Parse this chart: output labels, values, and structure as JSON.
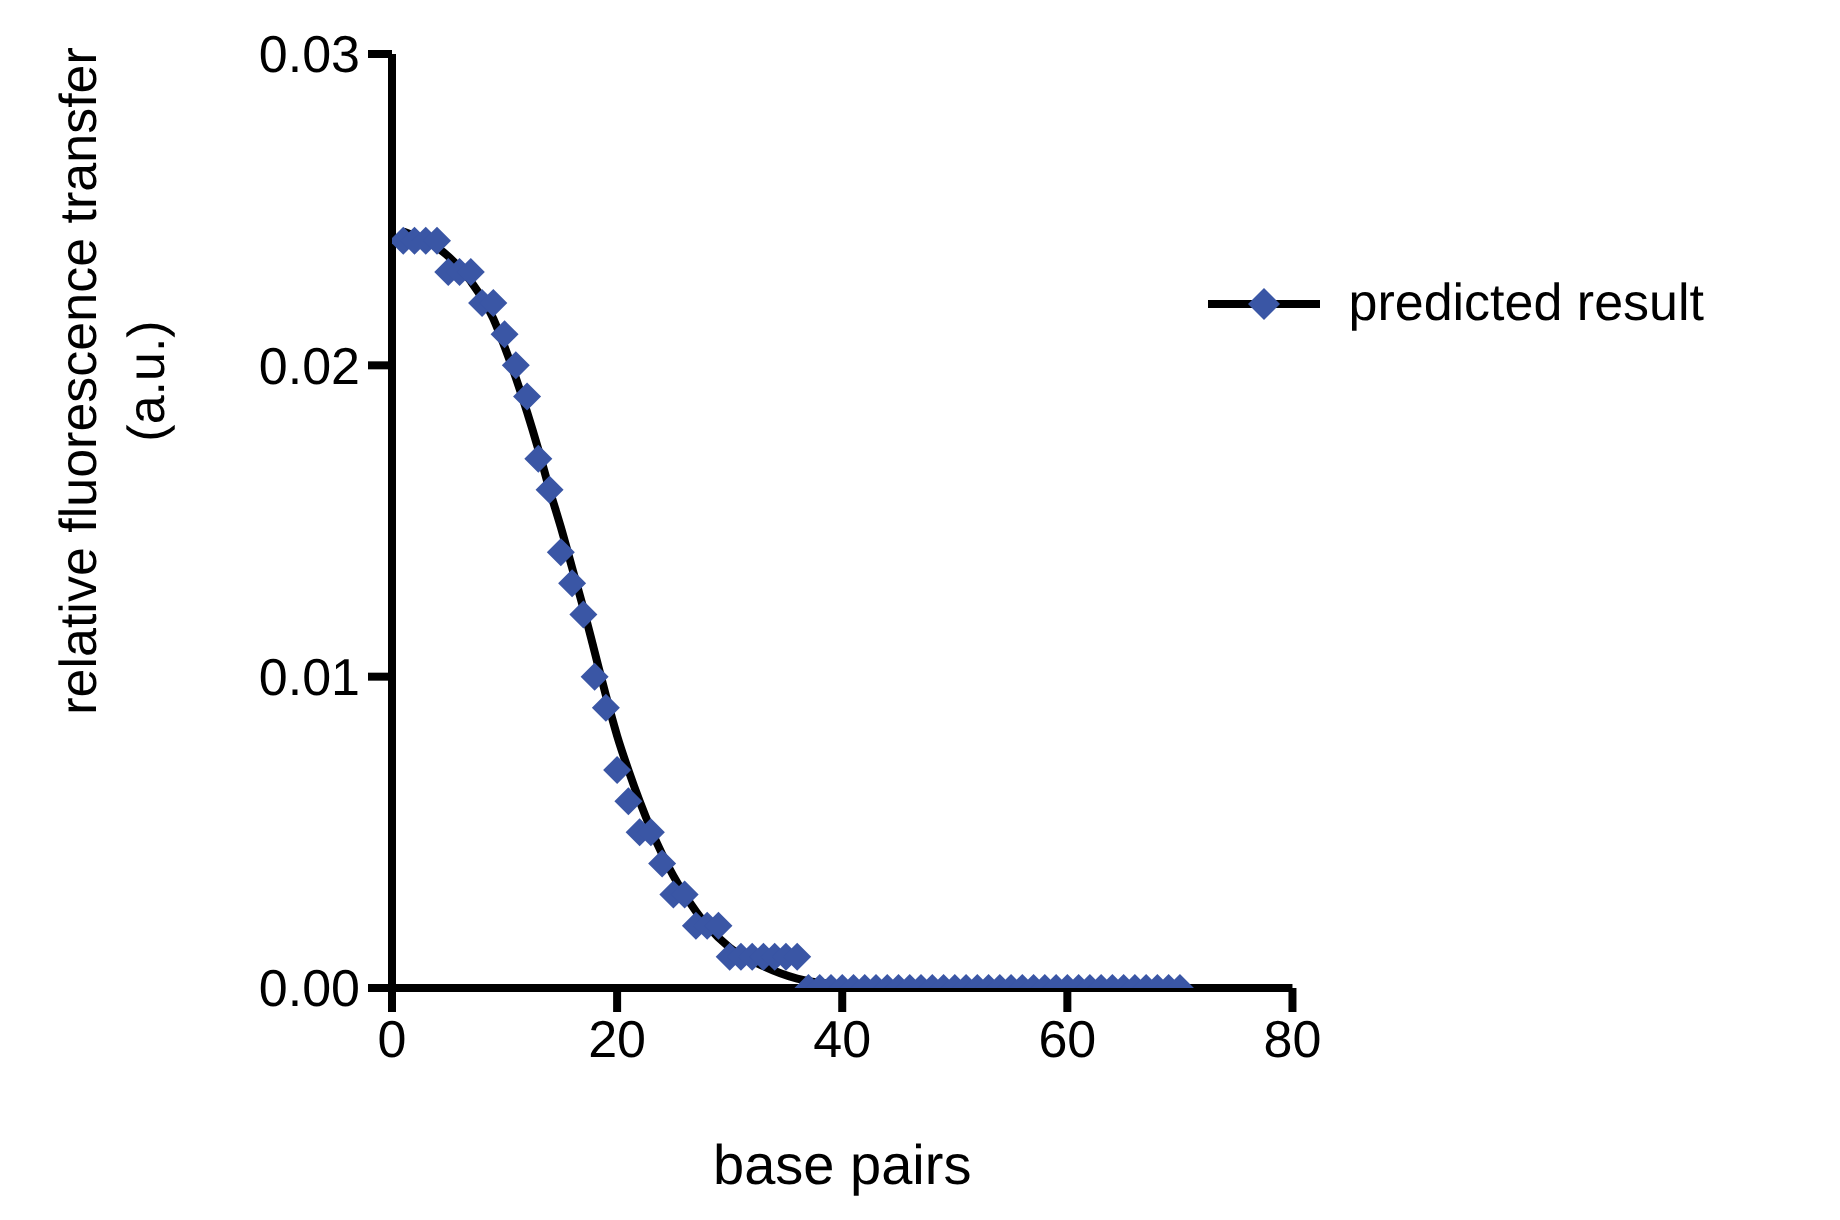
{
  "chart_data": {
    "type": "scatter",
    "xlabel": "base pairs",
    "ylabel": "relative fluorescence transfer (a.u.)",
    "xlim": [
      0,
      80
    ],
    "xticks": [
      0,
      20,
      40,
      60,
      80
    ],
    "ylim": [
      0,
      0.03
    ],
    "yticks": [
      {
        "value": 0,
        "label": "0.00"
      },
      {
        "value": 0.01,
        "label": "0.01"
      },
      {
        "value": 0.02,
        "label": "0.02"
      },
      {
        "value": 0.03,
        "label": "0.03"
      }
    ],
    "grid": false,
    "legend": "top right",
    "series": [
      {
        "name": "predicted result",
        "color": "#3a56a5",
        "marker": "diamond",
        "x": [
          1,
          2,
          3,
          4,
          5,
          6,
          7,
          8,
          9,
          10,
          11,
          12,
          13,
          14,
          15,
          16,
          17,
          18,
          19,
          20,
          21,
          22,
          23,
          24,
          25,
          26,
          27,
          28,
          29,
          30,
          31,
          32,
          33,
          34,
          35,
          36,
          37,
          38,
          39,
          40,
          41,
          42,
          43,
          44,
          45,
          46,
          47,
          48,
          49,
          50,
          51,
          52,
          53,
          54,
          55,
          56,
          57,
          58,
          59,
          60,
          61,
          62,
          63,
          64,
          65,
          66,
          67,
          68,
          69,
          70
        ],
        "values": [
          0.024,
          0.024,
          0.024,
          0.024,
          0.023,
          0.023,
          0.023,
          0.022,
          0.022,
          0.021,
          0.02,
          0.019,
          0.017,
          0.016,
          0.014,
          0.013,
          0.012,
          0.01,
          0.009,
          0.007,
          0.006,
          0.005,
          0.005,
          0.004,
          0.003,
          0.003,
          0.002,
          0.002,
          0.002,
          0.001,
          0.001,
          0.001,
          0.001,
          0.001,
          0.001,
          0.001,
          0,
          0,
          0,
          0,
          0,
          0,
          0,
          0,
          0,
          0,
          0,
          0,
          0,
          0,
          0,
          0,
          0,
          0,
          0,
          0,
          0,
          0,
          0,
          0,
          0,
          0,
          0,
          0,
          0,
          0,
          0,
          0,
          0,
          0
        ]
      },
      {
        "type": "line",
        "color": "#000000",
        "line_style": "solid",
        "marker": "none",
        "x": [
          1,
          5,
          7,
          9,
          10,
          11,
          12,
          13,
          14,
          15,
          16,
          17,
          18,
          19,
          20,
          21,
          22,
          23,
          24,
          25,
          26,
          28,
          30,
          33,
          36,
          40,
          45,
          50,
          60,
          70
        ],
        "values": [
          0.0243,
          0.0235,
          0.0227,
          0.0215,
          0.0206,
          0.0196,
          0.0185,
          0.0173,
          0.016,
          0.0148,
          0.0135,
          0.0122,
          0.0108,
          0.0094,
          0.0081,
          0.007,
          0.006,
          0.0051,
          0.0043,
          0.0036,
          0.003,
          0.002,
          0.0013,
          0.0007,
          0.0003,
          0.0001,
          0,
          0,
          0,
          0
        ]
      }
    ]
  }
}
